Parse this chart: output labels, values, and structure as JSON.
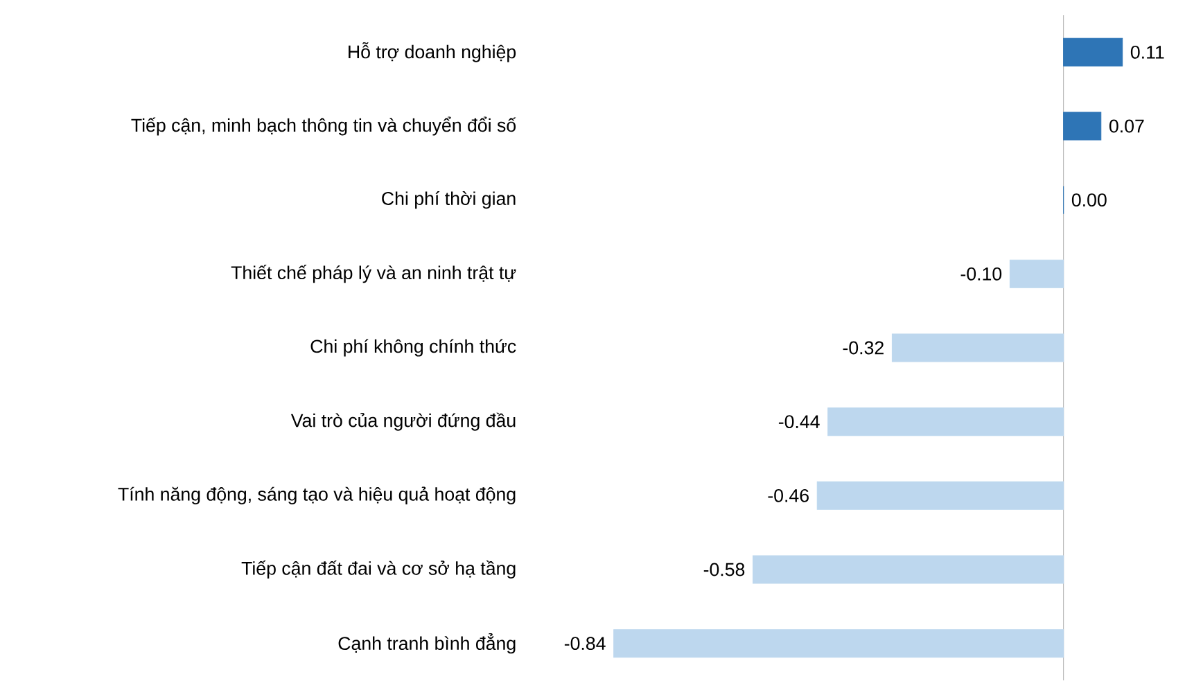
{
  "chart_data": {
    "type": "bar",
    "orientation": "horizontal",
    "categories": [
      "Hỗ trợ doanh nghiệp",
      "Tiếp cận, minh bạch thông tin và chuyển đổi số",
      "Chi phí thời gian",
      "Thiết chế pháp lý và an ninh trật tự",
      "Chi phí không chính thức",
      "Vai trò của người đứng đầu",
      "Tính năng động, sáng tạo và hiệu quả hoạt động",
      "Tiếp cận đất đai và cơ sở hạ tầng",
      "Cạnh tranh bình đẳng"
    ],
    "values": [
      0.11,
      0.07,
      0.0,
      -0.1,
      -0.32,
      -0.44,
      -0.46,
      -0.58,
      -0.84
    ],
    "value_labels": [
      "0.11",
      "0.07",
      "0.00",
      "-0.10",
      "-0.32",
      "-0.44",
      "-0.46",
      "-0.58",
      "-0.84"
    ],
    "colors": [
      "#2e75b6",
      "#2e75b6",
      "#2e75b6",
      "#bdd7ee",
      "#bdd7ee",
      "#bdd7ee",
      "#bdd7ee",
      "#bdd7ee",
      "#bdd7ee"
    ]
  }
}
